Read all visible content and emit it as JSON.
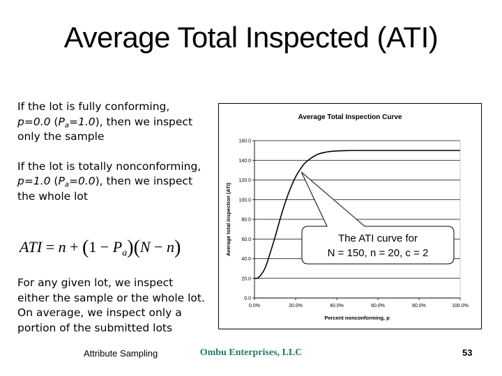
{
  "slide": {
    "title": "Average Total Inspected (ATI)",
    "para1": {
      "t1": "If the lot is fully conforming, ",
      "t2": "p=0.0",
      "t3": " (",
      "t4": "P",
      "t5": "a",
      "t6": "=1.0",
      "t7": "), then we inspect only the sample"
    },
    "para2": {
      "t1": "If the lot is totally nonconforming, ",
      "t2": "p=1.0",
      "t3": " (",
      "t4": "P",
      "t5": "a",
      "t6": "=0.0",
      "t7": "), then we inspect the whole lot"
    },
    "formula": {
      "lhs": "ATI",
      "eq": " = ",
      "n1": "n",
      "plus": " + ",
      "lp1": "(",
      "one": "1 − ",
      "P": "P",
      "a": "a",
      "rp1": ")",
      "lp2": "(",
      "N": "N",
      "minus": " − ",
      "n2": "n",
      "rp2": ")"
    },
    "para3": "For any given lot, we inspect either the sample or the whole lot. On average, we inspect only a portion of the submitted lots",
    "footer": {
      "left": "Attribute Sampling",
      "center": "Ombu Enterprises, LLC",
      "page": "53"
    },
    "colors": {
      "footer_center": "#1f7a6a",
      "gridline": "#000000",
      "curve": "#000000"
    }
  },
  "chart_data": {
    "type": "line",
    "title": "Average Total Inspection Curve",
    "xlabel": "Percent nonconforming, p",
    "ylabel": "Average total inspection (ATI)",
    "x_ticks": [
      "0.0%",
      "20.0%",
      "40.0%",
      "60.0%",
      "80.0%",
      "100.0%"
    ],
    "y_ticks": [
      "0.0",
      "20.0",
      "40.0",
      "60.0",
      "80.0",
      "100.0",
      "120.0",
      "140.0",
      "160.0"
    ],
    "xlim": [
      0,
      1
    ],
    "ylim": [
      0,
      160
    ],
    "grid": "horizontal",
    "legend": "none",
    "series": [
      {
        "name": "ATI (N=150, n=20, c=2)",
        "x": [
          0.0,
          0.02,
          0.05,
          0.075,
          0.1,
          0.125,
          0.15,
          0.175,
          0.2,
          0.225,
          0.25,
          0.3,
          0.35,
          0.4,
          0.45,
          0.5,
          0.6,
          0.7,
          0.8,
          0.9,
          1.0
        ],
        "y": [
          20.0,
          20.9,
          29.8,
          45.0,
          62.0,
          80.5,
          97.4,
          111.6,
          123.2,
          131.7,
          138.1,
          145.4,
          148.4,
          149.5,
          149.9,
          150.0,
          150.0,
          150.0,
          150.0,
          150.0,
          150.0
        ]
      }
    ],
    "annotation": {
      "line1": "The ATI curve for",
      "line2": "N = 150, n = 20, c = 2",
      "points_to": [
        0.225,
        128
      ]
    }
  }
}
